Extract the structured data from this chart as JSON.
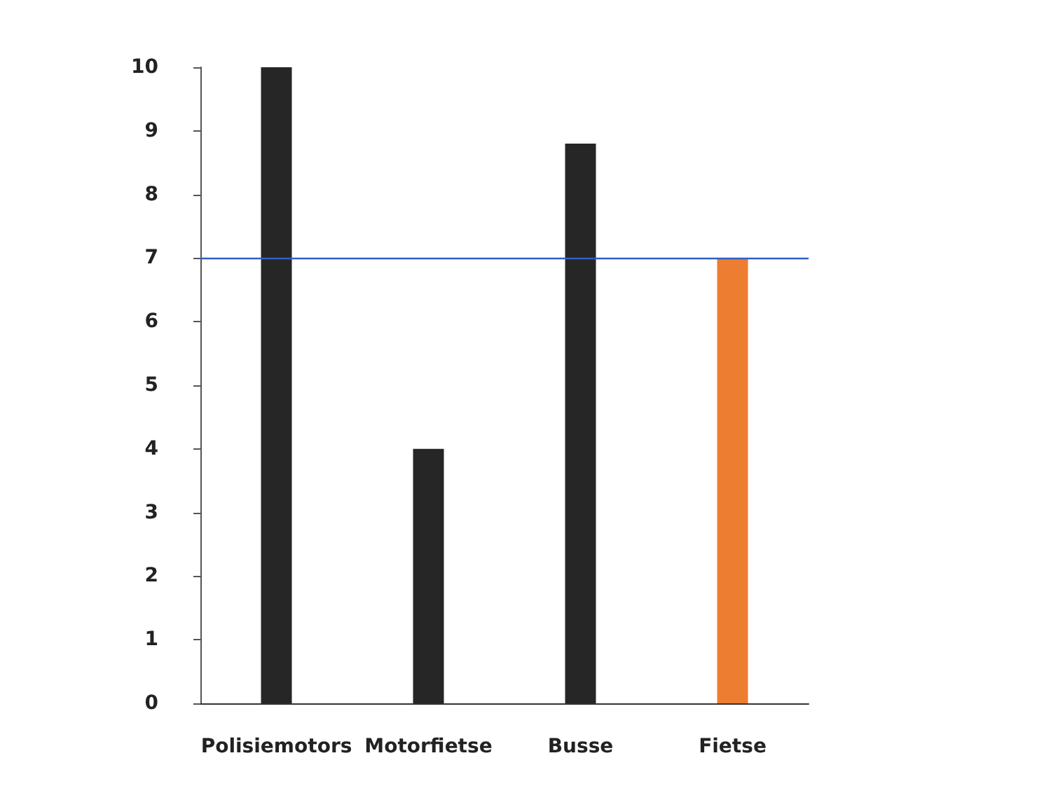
{
  "chart_data": {
    "type": "bar",
    "categories": [
      "Polisiemotors",
      "Motorfietse",
      "Busse",
      "Fietse"
    ],
    "values": [
      10,
      4,
      8.8,
      7
    ],
    "colors": [
      "#262626",
      "#262626",
      "#262626",
      "#ed7d31"
    ],
    "ylim": [
      0,
      10
    ],
    "yticks": [
      0,
      1,
      2,
      3,
      4,
      5,
      6,
      7,
      8,
      9,
      10
    ],
    "grid": false,
    "ref_lines": [
      {
        "axis": "y",
        "value": 7,
        "color": "#2f5fc4",
        "line_style": "solid"
      }
    ]
  }
}
